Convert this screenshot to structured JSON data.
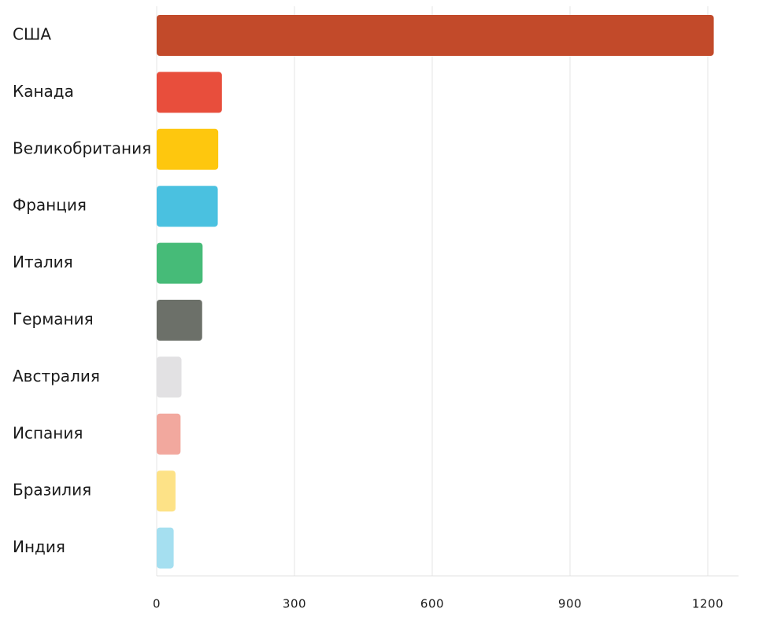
{
  "chart_data": {
    "type": "bar",
    "orientation": "horizontal",
    "title": "",
    "xlabel": "",
    "ylabel": "",
    "categories": [
      "США",
      "Канада",
      "Великобритания",
      "Франция",
      "Италия",
      "Германия",
      "Австралия",
      "Испания",
      "Бразилия",
      "Индия"
    ],
    "values": [
      1213,
      142,
      134,
      133,
      100,
      99,
      54,
      52,
      41,
      37
    ],
    "colors": [
      "#c24a2a",
      "#e84e3c",
      "#fec70e",
      "#4ac1e0",
      "#46bb78",
      "#6c7069",
      "#e2e1e3",
      "#f2a89e",
      "#fde287",
      "#a5dff0"
    ],
    "xlim": [
      0,
      1275
    ],
    "xticks": [
      0,
      300,
      600,
      900,
      1200
    ],
    "xtick_labels": [
      "0",
      "300",
      "600",
      "900",
      "1200"
    ],
    "grid": "vertical",
    "legend": "none"
  }
}
